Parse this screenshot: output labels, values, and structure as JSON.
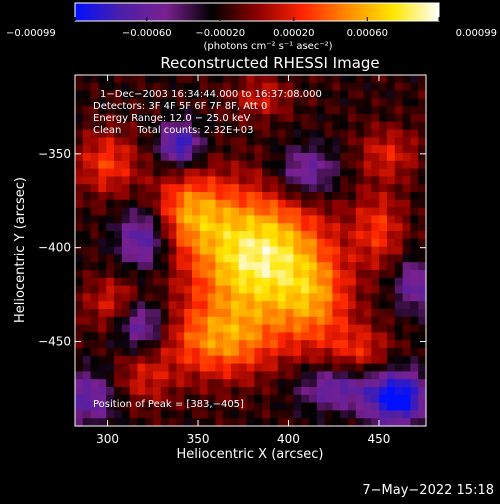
{
  "chart_data": {
    "type": "heatmap",
    "title": "Reconstructed RHESSI Image",
    "xlabel": "Heliocentric X (arcsec)",
    "ylabel": "Heliocentric Y (arcsec)",
    "xlim": [
      282,
      476
    ],
    "ylim": [
      -495,
      -308
    ],
    "xticks": [
      300,
      350,
      400,
      450
    ],
    "yticks": [
      -350,
      -400,
      -450
    ],
    "xtick_labels": [
      "300",
      "350",
      "400",
      "450"
    ],
    "ytick_labels": [
      "−350",
      "−400",
      "−450"
    ],
    "grid": false,
    "colorbar": {
      "range": [
        -0.00099,
        0.00099
      ],
      "ticks": [
        -0.00099,
        -0.0006,
        -0.0002,
        0.0002,
        0.0006,
        0.00099
      ],
      "tick_labels": [
        "−0.00099",
        "−0.00060",
        "−0.00020",
        "0.00020",
        "0.00060",
        "0.00099"
      ],
      "units": "(photons cm⁻² s⁻¹ asec⁻²)",
      "colors": [
        "#0010ff",
        "#4b1fa8",
        "#7a2090",
        "#000000",
        "#8b0000",
        "#ff2400",
        "#ff8c00",
        "#ffe600",
        "#ffffff"
      ]
    },
    "annotations": [
      "1−Dec−2003 16:34:44.000 to 16:37:08.000",
      "Detectors: 3F 4F 5F 6F 7F 8F, Att 0",
      "Energy Range: 12.0 − 25.0 keV",
      "Clean     Total counts: 2.32E+03",
      "Position of Peak = [383,−405]"
    ],
    "peak": {
      "x": 383,
      "y": -405
    },
    "sources": [
      {
        "x": 383,
        "y": -405,
        "sx": 26,
        "sy": 24,
        "amp": 0.00105
      },
      {
        "x": 345,
        "y": -380,
        "sx": 15,
        "sy": 14,
        "amp": 0.00055
      },
      {
        "x": 362,
        "y": -450,
        "sx": 22,
        "sy": 14,
        "amp": 0.0006
      },
      {
        "x": 415,
        "y": -430,
        "sx": 14,
        "sy": 18,
        "amp": 0.00045
      },
      {
        "x": 300,
        "y": -355,
        "sx": 12,
        "sy": 12,
        "amp": 0.00045
      },
      {
        "x": 305,
        "y": -430,
        "sx": 12,
        "sy": 10,
        "amp": 0.0004
      },
      {
        "x": 450,
        "y": -390,
        "sx": 10,
        "sy": 14,
        "amp": 0.0004
      },
      {
        "x": 455,
        "y": -350,
        "sx": 12,
        "sy": 10,
        "amp": 0.00035
      },
      {
        "x": 440,
        "y": -455,
        "sx": 12,
        "sy": 10,
        "amp": 0.00035
      },
      {
        "x": 385,
        "y": -320,
        "sx": 12,
        "sy": 8,
        "amp": 0.0003
      },
      {
        "x": 320,
        "y": -470,
        "sx": 12,
        "sy": 10,
        "amp": 0.0003
      },
      {
        "x": 340,
        "y": -345,
        "sx": 8,
        "sy": 8,
        "amp": -0.0007
      },
      {
        "x": 320,
        "y": -395,
        "sx": 10,
        "sy": 12,
        "amp": -0.0006
      },
      {
        "x": 318,
        "y": -440,
        "sx": 10,
        "sy": 10,
        "amp": -0.0006
      },
      {
        "x": 460,
        "y": -480,
        "sx": 12,
        "sy": 10,
        "amp": -0.0009
      },
      {
        "x": 410,
        "y": -360,
        "sx": 12,
        "sy": 10,
        "amp": -0.0005
      },
      {
        "x": 425,
        "y": -475,
        "sx": 14,
        "sy": 8,
        "amp": -0.0005
      },
      {
        "x": 470,
        "y": -420,
        "sx": 8,
        "sy": 10,
        "amp": -0.00045
      },
      {
        "x": 290,
        "y": -480,
        "sx": 10,
        "sy": 10,
        "amp": -0.0005
      }
    ],
    "background": -0.00018
  },
  "footer": {
    "timestamp": "7−May−2022 15:18"
  }
}
